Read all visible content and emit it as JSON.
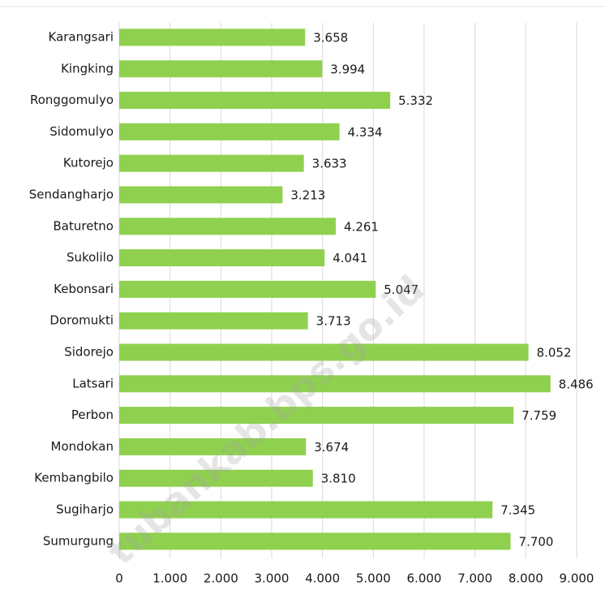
{
  "chart_data": {
    "type": "bar",
    "orientation": "horizontal",
    "categories": [
      "Karangsari",
      "Kingking",
      "Ronggomulyo",
      "Sidomulyo",
      "Kutorejo",
      "Sendangharjo",
      "Baturetno",
      "Sukolilo",
      "Kebonsari",
      "Doromukti",
      "Sidorejo",
      "Latsari",
      "Perbon",
      "Mondokan",
      "Kembangbilo",
      "Sugiharjo",
      "Sumurgung"
    ],
    "values": [
      3658,
      3994,
      5332,
      4334,
      3633,
      3213,
      4261,
      4041,
      5047,
      3713,
      8052,
      8486,
      7759,
      3674,
      3810,
      7345,
      7700
    ],
    "value_labels": [
      "3.658",
      "3.994",
      "5.332",
      "4.334",
      "3.633",
      "3.213",
      "4.261",
      "4.041",
      "5.047",
      "3.713",
      "8.052",
      "8.486",
      "7.759",
      "3.674",
      "3.810",
      "7.345",
      "7.700"
    ],
    "color": "#8fd14f",
    "xlim": [
      0,
      9000
    ],
    "xticks": [
      0,
      {
        "value": 1000,
        "label": "1.000"
      },
      {
        "value": 2000,
        "label": "2.000"
      },
      {
        "value": 3000,
        "label": "3.000"
      },
      {
        "value": 4000,
        "label": "4.000"
      },
      {
        "value": 5000,
        "label": "5.000"
      },
      {
        "value": 6000,
        "label": "6.000"
      },
      {
        "value": 7000,
        "label": "7.000"
      },
      {
        "value": 8000,
        "label": "8.000"
      },
      {
        "value": 9000,
        "label": "9.000"
      }
    ],
    "grid": true,
    "watermark": "tubankab.bps.go.id"
  }
}
